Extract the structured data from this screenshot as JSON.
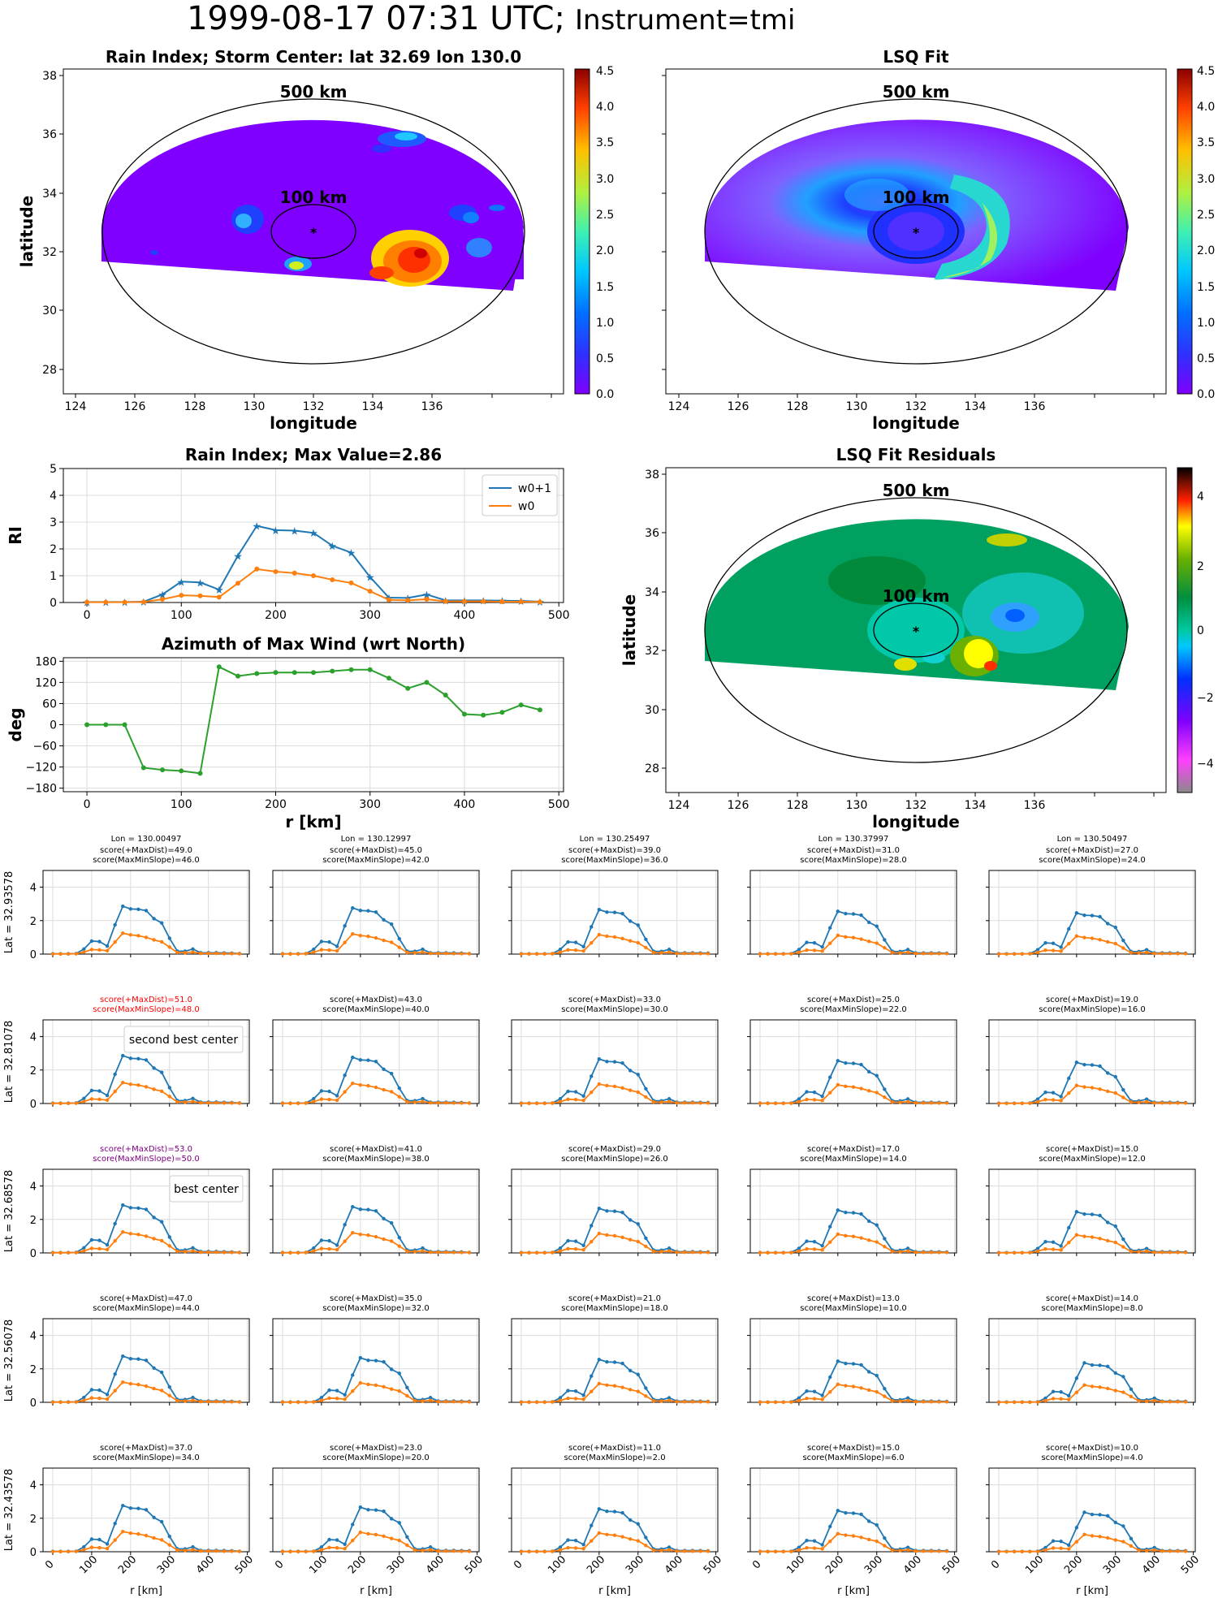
{
  "title_main": "1999-08-17 07:31 UTC;",
  "title_instr": "Instrument=tmi",
  "colors": {
    "blue": "#1f77b4",
    "orange": "#ff7f0e",
    "green": "#2ca02c",
    "grid": "#dcdcdc",
    "red": "#ff0000",
    "purple": "#800080"
  },
  "map_common": {
    "xticks": [
      124,
      126,
      128,
      130,
      132,
      134,
      136
    ],
    "yticks": [
      28,
      30,
      32,
      34,
      36,
      38
    ],
    "ring_outer": "500 km",
    "ring_inner": "100 km",
    "center_marker": "*"
  },
  "map_rain": {
    "title": "Rain Index; Storm Center: lat 32.69 lon 130.0",
    "xlabel": "longitude",
    "ylabel": "latitude",
    "cbar_ticks": [
      "0.0",
      "0.5",
      "1.0",
      "1.5",
      "2.0",
      "2.5",
      "3.0",
      "3.5",
      "4.0",
      "4.5"
    ]
  },
  "map_fit": {
    "title": "LSQ Fit",
    "xlabel": "longitude",
    "cbar_ticks": [
      "0.0",
      "0.5",
      "1.0",
      "1.5",
      "2.0",
      "2.5",
      "3.0",
      "3.5",
      "4.0",
      "4.5"
    ]
  },
  "map_resid": {
    "title": "LSQ Fit Residuals",
    "xlabel": "longitude",
    "ylabel": "latitude",
    "cbar_ticks": [
      "4",
      "2",
      "0",
      "−2",
      "−4"
    ]
  },
  "chart_data": [
    {
      "type": "line",
      "title": "Rain Index; Max Value=2.86",
      "ylabel": "RI",
      "xlabel": "",
      "xlim": [
        -25,
        505
      ],
      "ylim": [
        0,
        5
      ],
      "xticks": [
        "0",
        "100",
        "200",
        "300",
        "400",
        "500"
      ],
      "yticks": [
        "0",
        "1",
        "2",
        "3",
        "4",
        "5"
      ],
      "legend": "top-right",
      "grid": true,
      "x": [
        0,
        20,
        40,
        60,
        80,
        100,
        120,
        140,
        160,
        180,
        200,
        220,
        240,
        260,
        280,
        300,
        320,
        340,
        360,
        380,
        400,
        420,
        440,
        460,
        480
      ],
      "series": [
        {
          "name": "w0+1",
          "values": [
            0.02,
            0.02,
            0.02,
            0.03,
            0.3,
            0.78,
            0.75,
            0.48,
            1.75,
            2.86,
            2.7,
            2.68,
            2.6,
            2.12,
            1.86,
            0.95,
            0.18,
            0.17,
            0.3,
            0.08,
            0.08,
            0.08,
            0.07,
            0.06,
            0.03
          ]
        },
        {
          "name": "w0",
          "values": [
            0.01,
            0.01,
            0.01,
            0.02,
            0.12,
            0.27,
            0.25,
            0.2,
            0.72,
            1.25,
            1.15,
            1.1,
            1.0,
            0.85,
            0.73,
            0.42,
            0.1,
            0.08,
            0.12,
            0.04,
            0.04,
            0.04,
            0.03,
            0.03,
            0.02
          ]
        }
      ]
    },
    {
      "type": "line",
      "title": "Azimuth of Max Wind (wrt North)",
      "ylabel": "deg",
      "xlabel": "r [km]",
      "xlim": [
        -25,
        505
      ],
      "ylim": [
        -190,
        190
      ],
      "xticks": [
        "0",
        "100",
        "200",
        "300",
        "400",
        "500"
      ],
      "yticks": [
        "−180",
        "−120",
        "−60",
        "0",
        "60",
        "120",
        "180"
      ],
      "grid": true,
      "x": [
        0,
        20,
        40,
        60,
        80,
        100,
        120,
        140,
        160,
        180,
        200,
        220,
        240,
        260,
        280,
        300,
        320,
        340,
        360,
        380,
        400,
        420,
        440,
        460,
        480
      ],
      "series": [
        {
          "values": [
            0,
            0,
            0,
            -122,
            -128,
            -131,
            -138,
            164,
            138,
            145,
            148,
            148,
            148,
            152,
            156,
            156,
            132,
            103,
            120,
            84,
            30,
            27,
            35,
            56,
            42
          ]
        }
      ]
    }
  ],
  "grid": {
    "xticks": [
      "0",
      "100",
      "200",
      "300",
      "400",
      "500"
    ],
    "yticks": [
      "0",
      "2",
      "4"
    ],
    "xlabel": "r [km]",
    "lons": [
      "Lon = 130.00497",
      "Lon = 130.12997",
      "Lon = 130.25497",
      "Lon = 130.37997",
      "Lon = 130.50497"
    ],
    "lats": [
      "Lat = 32.93578",
      "Lat = 32.81078",
      "Lat = 32.68578",
      "Lat = 32.56078",
      "Lat = 32.43578"
    ],
    "scores": [
      [
        [
          "score(+MaxDist)=49.0",
          "score(MaxMinSlope)=46.0"
        ],
        [
          "score(+MaxDist)=45.0",
          "score(MaxMinSlope)=42.0"
        ],
        [
          "score(+MaxDist)=39.0",
          "score(MaxMinSlope)=36.0"
        ],
        [
          "score(+MaxDist)=31.0",
          "score(MaxMinSlope)=28.0"
        ],
        [
          "score(+MaxDist)=27.0",
          "score(MaxMinSlope)=24.0"
        ]
      ],
      [
        [
          "score(+MaxDist)=51.0",
          "score(MaxMinSlope)=48.0"
        ],
        [
          "score(+MaxDist)=43.0",
          "score(MaxMinSlope)=40.0"
        ],
        [
          "score(+MaxDist)=33.0",
          "score(MaxMinSlope)=30.0"
        ],
        [
          "score(+MaxDist)=25.0",
          "score(MaxMinSlope)=22.0"
        ],
        [
          "score(+MaxDist)=19.0",
          "score(MaxMinSlope)=16.0"
        ]
      ],
      [
        [
          "score(+MaxDist)=53.0",
          "score(MaxMinSlope)=50.0"
        ],
        [
          "score(+MaxDist)=41.0",
          "score(MaxMinSlope)=38.0"
        ],
        [
          "score(+MaxDist)=29.0",
          "score(MaxMinSlope)=26.0"
        ],
        [
          "score(+MaxDist)=17.0",
          "score(MaxMinSlope)=14.0"
        ],
        [
          "score(+MaxDist)=15.0",
          "score(MaxMinSlope)=12.0"
        ]
      ],
      [
        [
          "score(+MaxDist)=47.0",
          "score(MaxMinSlope)=44.0"
        ],
        [
          "score(+MaxDist)=35.0",
          "score(MaxMinSlope)=32.0"
        ],
        [
          "score(+MaxDist)=21.0",
          "score(MaxMinSlope)=18.0"
        ],
        [
          "score(+MaxDist)=13.0",
          "score(MaxMinSlope)=10.0"
        ],
        [
          "score(+MaxDist)=14.0",
          "score(MaxMinSlope)=8.0"
        ]
      ],
      [
        [
          "score(+MaxDist)=37.0",
          "score(MaxMinSlope)=34.0"
        ],
        [
          "score(+MaxDist)=23.0",
          "score(MaxMinSlope)=20.0"
        ],
        [
          "score(+MaxDist)=11.0",
          "score(MaxMinSlope)=2.0"
        ],
        [
          "score(+MaxDist)=15.0",
          "score(MaxMinSlope)=6.0"
        ],
        [
          "score(+MaxDist)=10.0",
          "score(MaxMinSlope)=4.0"
        ]
      ]
    ],
    "highlights": {
      "second": "second best center",
      "best": "best center"
    }
  }
}
